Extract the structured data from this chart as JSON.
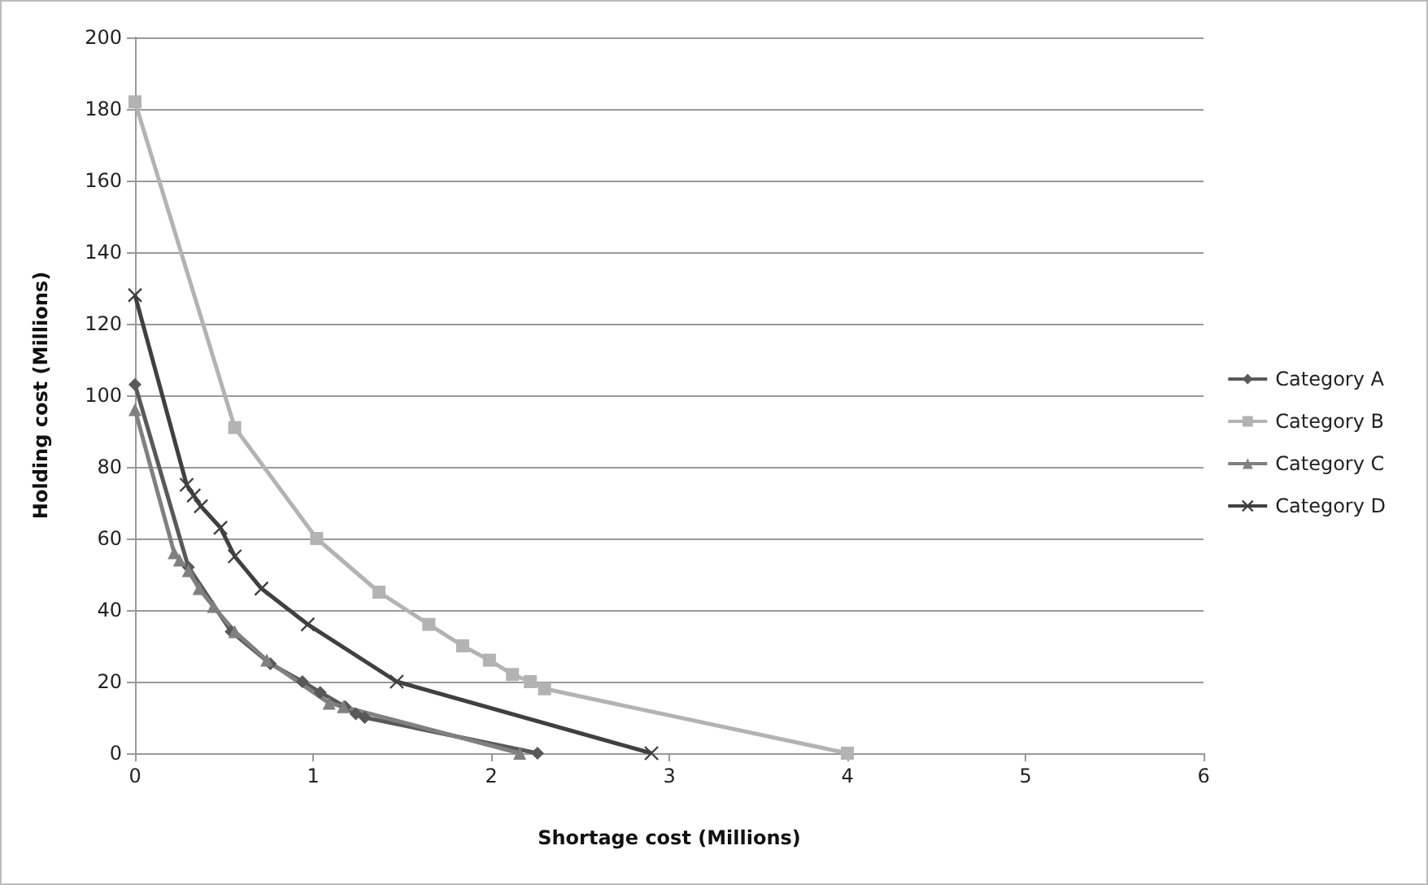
{
  "chart_data": {
    "type": "line",
    "xlabel": "Shortage cost (Millions)",
    "ylabel": "Holding cost (Millions)",
    "xlim": [
      0,
      6
    ],
    "xticks": [
      0,
      1,
      2,
      3,
      4,
      5,
      6
    ],
    "ylim": [
      0,
      200
    ],
    "yticks": [
      0,
      20,
      40,
      60,
      80,
      100,
      120,
      140,
      160,
      180,
      200
    ],
    "grid": "y",
    "legend": "right",
    "series": [
      {
        "name": "Category A",
        "color": "#595959",
        "marker": "diamond",
        "x": [
          0,
          0.3,
          0.54,
          0.76,
          0.94,
          1.04,
          1.18,
          1.24,
          1.29,
          2.26
        ],
        "values": [
          103,
          52,
          34,
          25,
          20,
          17,
          13,
          11,
          10,
          0
        ]
      },
      {
        "name": "Category B",
        "color": "#b3b3b3",
        "marker": "square",
        "x": [
          0,
          0.56,
          1.02,
          1.37,
          1.65,
          1.84,
          1.99,
          2.12,
          2.22,
          2.3,
          4
        ],
        "values": [
          182,
          91,
          60,
          45,
          36,
          30,
          26,
          22,
          20,
          18,
          0
        ]
      },
      {
        "name": "Category C",
        "color": "#808080",
        "marker": "triangle",
        "x": [
          0,
          0.22,
          0.25,
          0.3,
          0.36,
          0.44,
          0.56,
          0.74,
          1.09,
          1.17,
          2.16
        ],
        "values": [
          96,
          56,
          54,
          51,
          46,
          41,
          34,
          26,
          14,
          13,
          0
        ]
      },
      {
        "name": "Category D",
        "color": "#404040",
        "marker": "cross",
        "x": [
          0,
          0.29,
          0.33,
          0.37,
          0.48,
          0.56,
          0.71,
          0.97,
          1.47,
          2.9
        ],
        "values": [
          128,
          75,
          72,
          69,
          63,
          55,
          46,
          36,
          20,
          0
        ]
      }
    ]
  }
}
